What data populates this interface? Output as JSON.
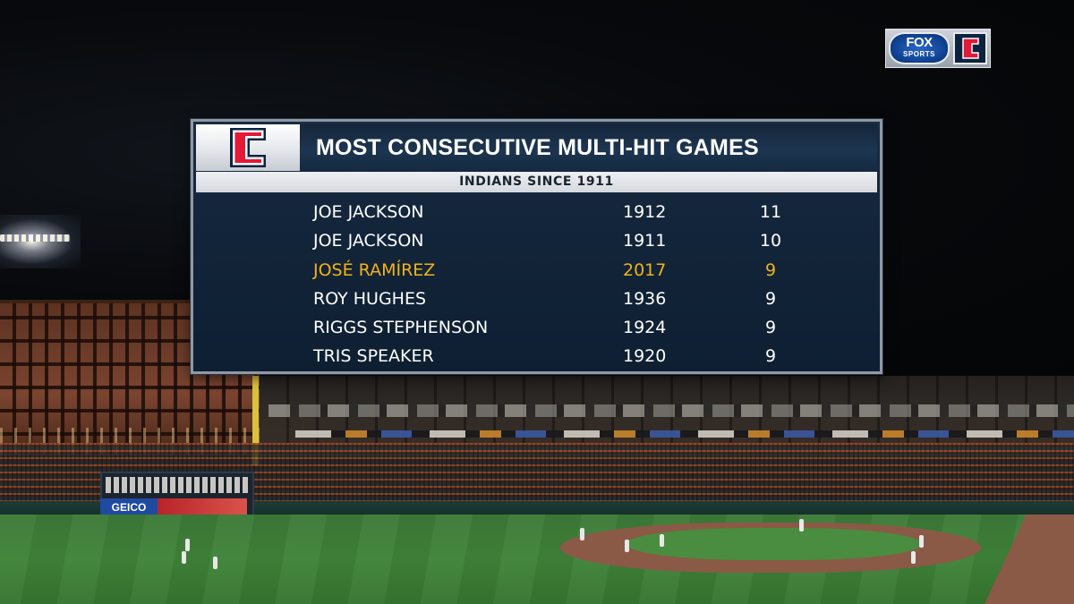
{
  "network_bug": {
    "network_line1": "FOX",
    "network_line2": "SPORTS",
    "team_logo_icon": "indians-c-logo-icon"
  },
  "graphic": {
    "logo_icon": "indians-c-logo-icon",
    "title": "MOST CONSECUTIVE MULTI-HIT GAMES",
    "subtitle": "INDIANS SINCE 1911",
    "rows": [
      {
        "name": "JOE JACKSON",
        "year": "1912",
        "games": "11",
        "highlight": false
      },
      {
        "name": "JOE JACKSON",
        "year": "1911",
        "games": "10",
        "highlight": false
      },
      {
        "name": "JOSÉ RAMÍREZ",
        "year": "2017",
        "games": "9",
        "highlight": true
      },
      {
        "name": "ROY HUGHES",
        "year": "1936",
        "games": "9",
        "highlight": false
      },
      {
        "name": "RIGGS STEPHENSON",
        "year": "1924",
        "games": "9",
        "highlight": false
      },
      {
        "name": "TRIS SPEAKER",
        "year": "1920",
        "games": "9",
        "highlight": false
      }
    ]
  },
  "background": {
    "ad_label": "GEICO"
  },
  "colors": {
    "highlight": "#f2b21c",
    "team_red": "#e31937",
    "team_navy": "#0c2340",
    "panel_bg": "#13253a"
  }
}
